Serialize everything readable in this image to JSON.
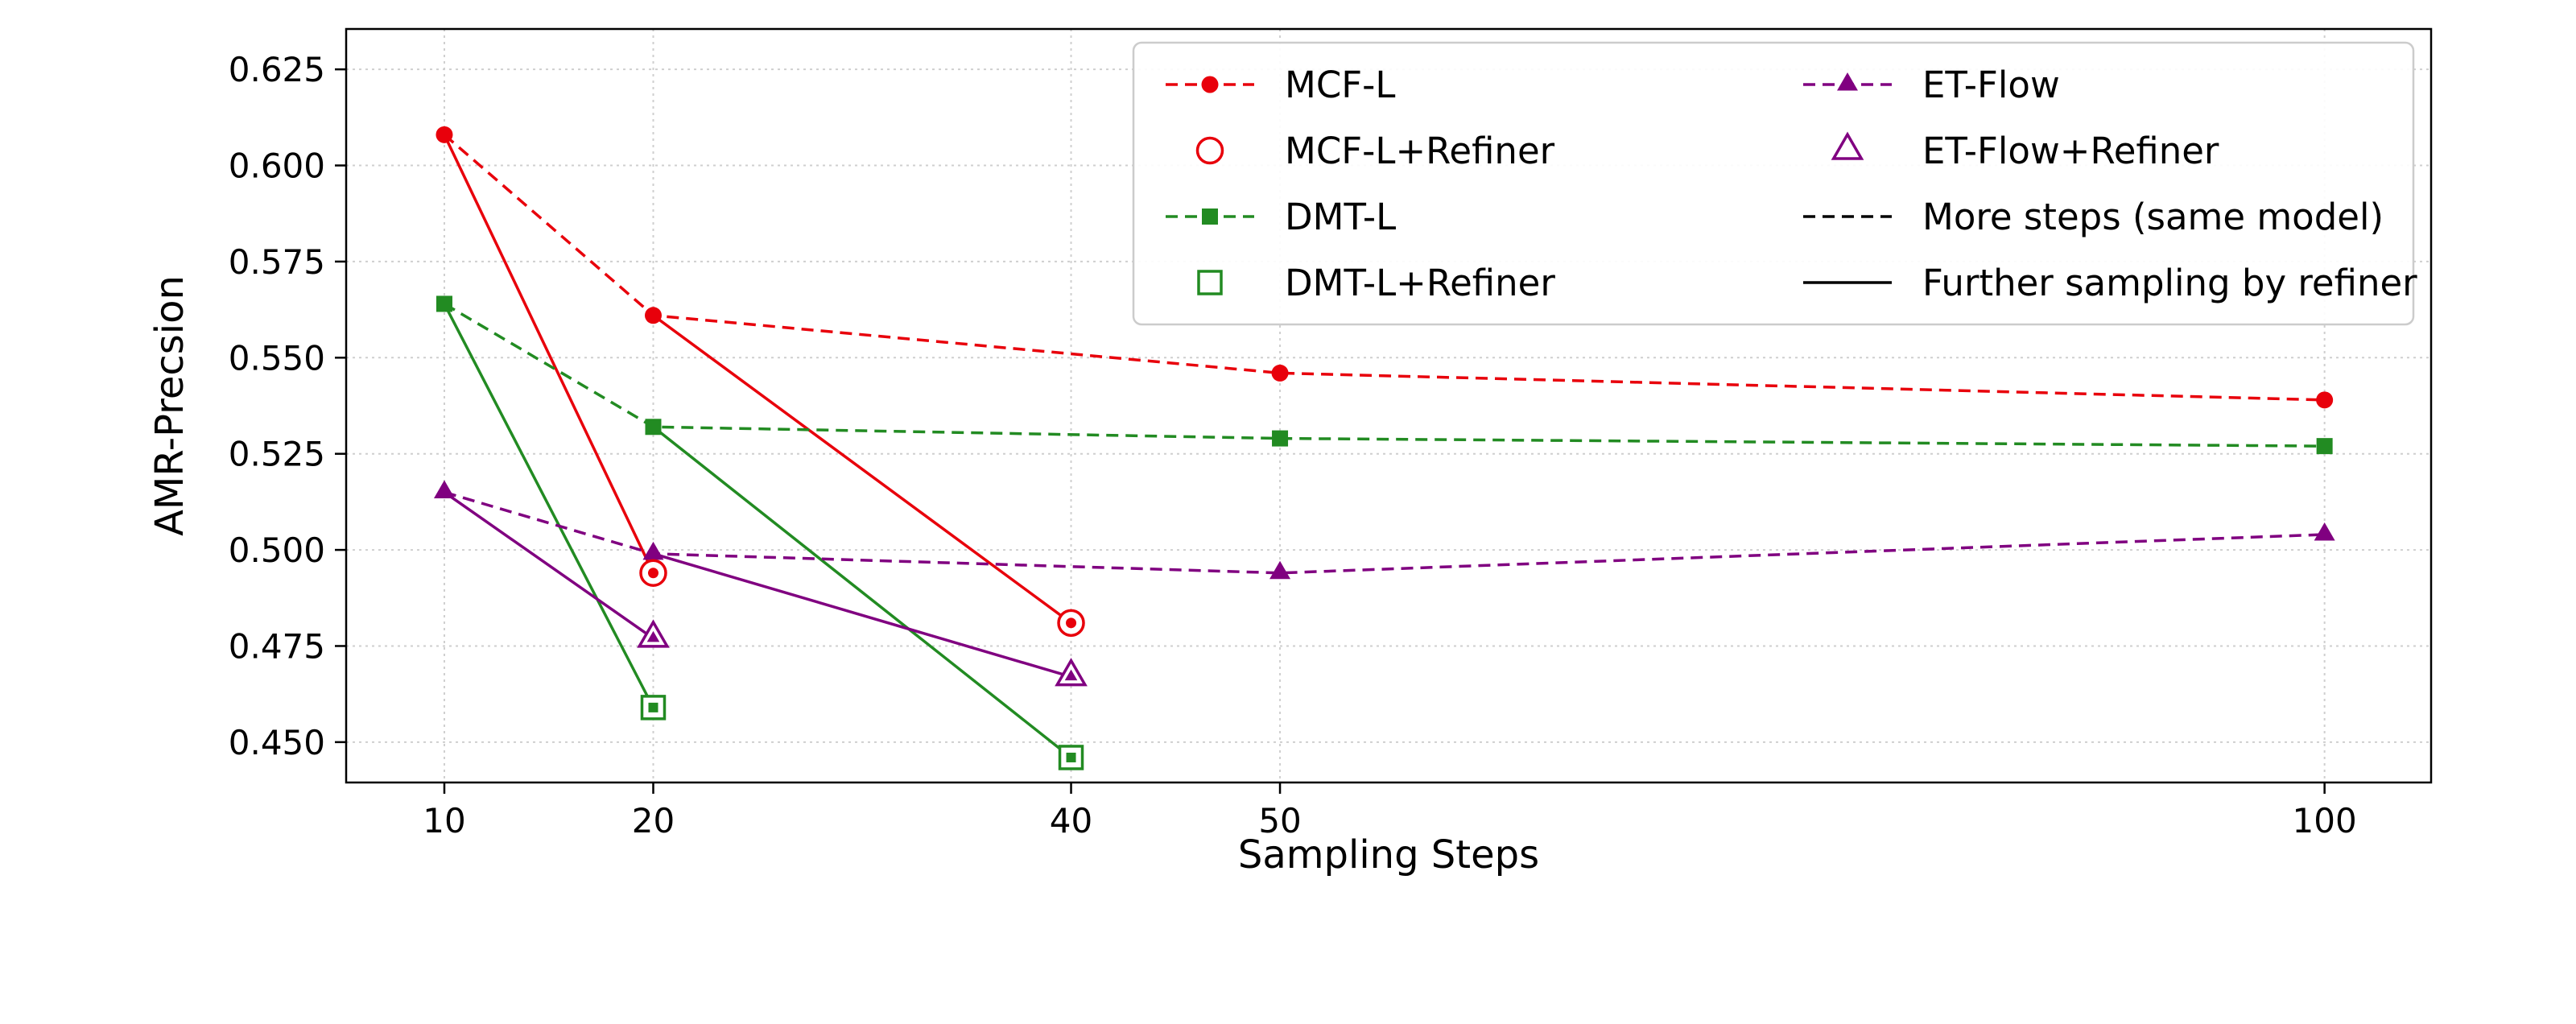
{
  "chart_data": {
    "type": "line",
    "title": "",
    "xlabel": "Sampling Steps",
    "ylabel": "AMR-Precsion",
    "xlim": [
      5.3,
      105.1
    ],
    "ylim": [
      0.4395,
      0.6355
    ],
    "xticks": [
      10,
      20,
      40,
      50,
      100
    ],
    "yticks": [
      "0.450",
      "0.475",
      "0.500",
      "0.525",
      "0.550",
      "0.575",
      "0.600",
      "0.625"
    ],
    "grid": true,
    "legend_position": "upper right",
    "series": [
      {
        "name": "MCF-L",
        "color": "#e8000b",
        "style": "dashed",
        "marker": "circle",
        "x": [
          10,
          20,
          50,
          100
        ],
        "y": [
          0.608,
          0.561,
          0.546,
          0.539
        ]
      },
      {
        "name": "DMT-L",
        "color": "#228b22",
        "style": "dashed",
        "marker": "square",
        "x": [
          10,
          20,
          50,
          100
        ],
        "y": [
          0.564,
          0.532,
          0.529,
          0.527
        ]
      },
      {
        "name": "ET-Flow",
        "color": "#800080",
        "style": "dashed",
        "marker": "triangle",
        "x": [
          10,
          20,
          50,
          100
        ],
        "y": [
          0.515,
          0.499,
          0.494,
          0.504
        ]
      }
    ],
    "refiner_segments": [
      {
        "model": "MCF-L",
        "color": "#e8000b",
        "marker": "circle",
        "from": [
          10,
          0.608
        ],
        "to": [
          20,
          0.494
        ]
      },
      {
        "model": "MCF-L",
        "color": "#e8000b",
        "marker": "circle",
        "from": [
          20,
          0.561
        ],
        "to": [
          40,
          0.481
        ]
      },
      {
        "model": "DMT-L",
        "color": "#228b22",
        "marker": "square",
        "from": [
          10,
          0.564
        ],
        "to": [
          20,
          0.459
        ]
      },
      {
        "model": "DMT-L",
        "color": "#228b22",
        "marker": "square",
        "from": [
          20,
          0.532
        ],
        "to": [
          40,
          0.446
        ]
      },
      {
        "model": "ET-Flow",
        "color": "#800080",
        "marker": "triangle",
        "from": [
          10,
          0.515
        ],
        "to": [
          20,
          0.477
        ]
      },
      {
        "model": "ET-Flow",
        "color": "#800080",
        "marker": "triangle",
        "from": [
          20,
          0.499
        ],
        "to": [
          40,
          0.467
        ]
      }
    ],
    "legend": {
      "columns": [
        [
          {
            "label": "MCF-L",
            "color": "#e8000b",
            "line": "dashed",
            "marker": "circle",
            "marker_fill": "filled"
          },
          {
            "label": "MCF-L+Refiner",
            "color": "#e8000b",
            "line": "none",
            "marker": "circle",
            "marker_fill": "open"
          },
          {
            "label": "DMT-L",
            "color": "#228b22",
            "line": "dashed",
            "marker": "square",
            "marker_fill": "filled"
          },
          {
            "label": "DMT-L+Refiner",
            "color": "#228b22",
            "line": "none",
            "marker": "square",
            "marker_fill": "open"
          }
        ],
        [
          {
            "label": "ET-Flow",
            "color": "#800080",
            "line": "dashed",
            "marker": "triangle",
            "marker_fill": "filled"
          },
          {
            "label": "ET-Flow+Refiner",
            "color": "#800080",
            "line": "none",
            "marker": "triangle",
            "marker_fill": "open"
          },
          {
            "label": "More steps (same model)",
            "color": "#000000",
            "line": "dashed",
            "marker": "none",
            "marker_fill": "none"
          },
          {
            "label": "Further sampling by refiner",
            "color": "#000000",
            "line": "solid",
            "marker": "none",
            "marker_fill": "none"
          }
        ]
      ]
    },
    "colors": {
      "mcf": "#e8000b",
      "dmt": "#228b22",
      "etflow": "#800080",
      "grid": "#cfcfcf",
      "border": "#000000",
      "background": "#ffffff"
    }
  }
}
